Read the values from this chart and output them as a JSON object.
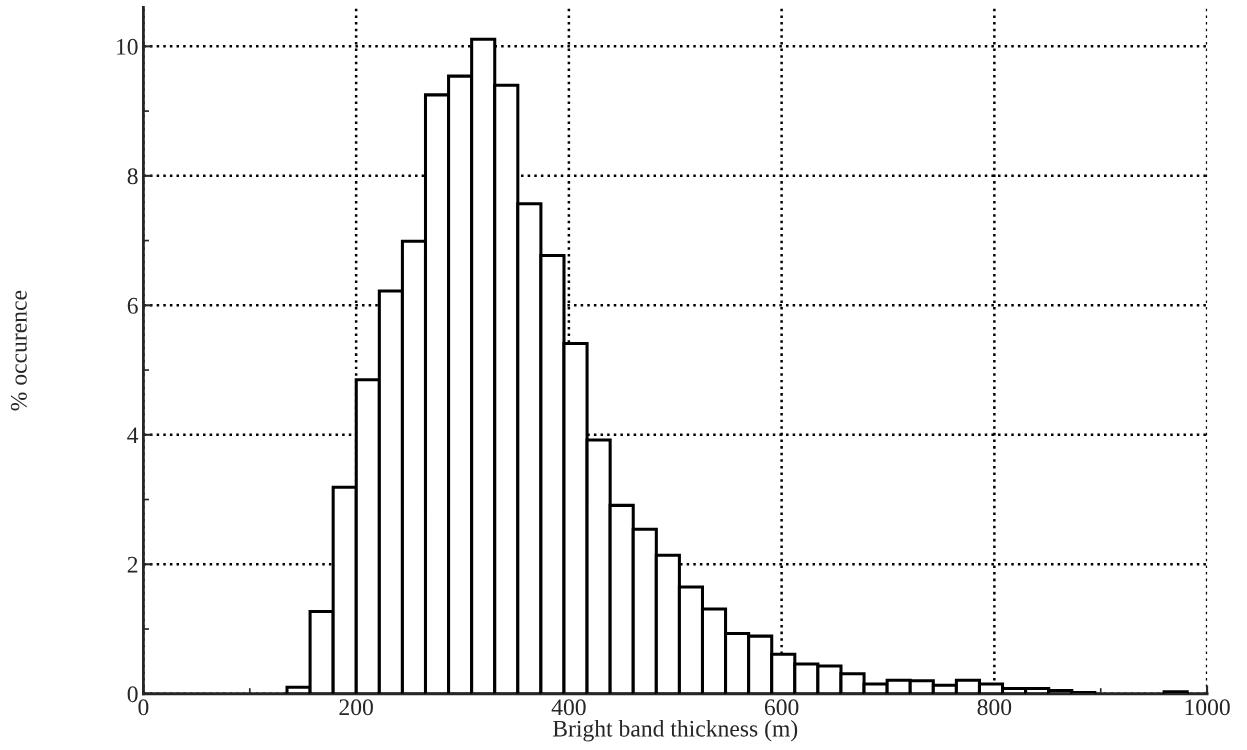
{
  "chart_data": {
    "type": "histogram",
    "xlabel": "Bright band thickness (m)",
    "ylabel": "% occurence",
    "bins": [
      135,
      156.7,
      178.4,
      200.1,
      221.8,
      243.5,
      265.2,
      286.9,
      308.6,
      330.3,
      352,
      373.7,
      395.4,
      417.1,
      438.8,
      460.5,
      482.2,
      503.9,
      525.6,
      547.3,
      569,
      590.7,
      612.4,
      634.1,
      655.8,
      677.5,
      699.2,
      720.9,
      742.6,
      764.3,
      786,
      807.7,
      829.4,
      851.1,
      872.8,
      894.5,
      916.2,
      937.9,
      959.6,
      981.3
    ],
    "values": [
      0.1,
      1.27,
      3.19,
      4.85,
      6.22,
      6.99,
      9.25,
      9.54,
      10.11,
      9.4,
      7.57,
      6.77,
      5.41,
      3.92,
      2.91,
      2.54,
      2.14,
      1.65,
      1.31,
      0.93,
      0.89,
      0.61,
      0.46,
      0.43,
      0.31,
      0.15,
      0.21,
      0.2,
      0.13,
      0.21,
      0.15,
      0.08,
      0.08,
      0.05,
      0.02,
      null,
      null,
      null,
      0.03
    ],
    "color": "#ffffff",
    "xlim": [
      0,
      1000
    ],
    "xticks": [
      0,
      200,
      400,
      600,
      800,
      1000
    ],
    "ylim": [
      0,
      10.6
    ],
    "yticks": [
      0,
      2,
      4,
      6,
      8,
      10
    ],
    "grid": true,
    "line_style": "dotted"
  }
}
